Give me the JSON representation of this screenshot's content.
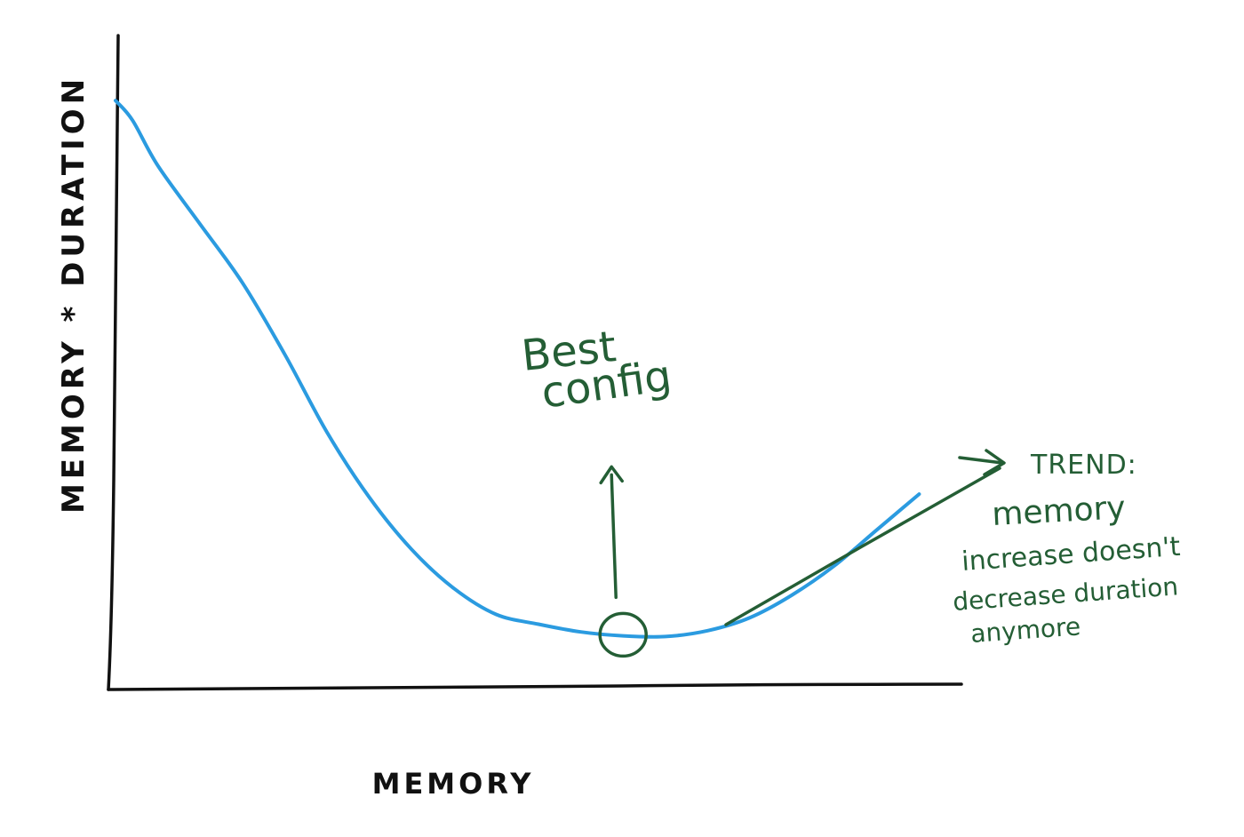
{
  "colors": {
    "curve": "#2b9be0",
    "annotation": "#245e35",
    "axis": "#111111"
  },
  "chart_data": {
    "type": "line",
    "title": "",
    "xlabel": "MEMORY",
    "ylabel": "MEMORY * DURATION",
    "x_ticks": "none",
    "y_ticks": "none",
    "grid": false,
    "style": "hand-drawn sketch",
    "series": [
      {
        "x": [
          0,
          2,
          5,
          10,
          15,
          20,
          25,
          30,
          35,
          40,
          45,
          50,
          55,
          60,
          65,
          70,
          75,
          80,
          85,
          90,
          95
        ],
        "values": [
          90,
          87,
          80,
          71,
          62,
          51,
          39,
          29,
          21,
          15,
          11,
          9.5,
          8.3,
          7.7,
          7.6,
          8.5,
          10.5,
          14,
          18.5,
          24,
          29.5
        ]
      }
    ],
    "xlim": [
      0,
      100
    ],
    "ylim": [
      0,
      100
    ],
    "annotations": {
      "best": {
        "lines": [
          "Best",
          "config"
        ],
        "x": 60,
        "y": 7.6
      },
      "trend": {
        "lines": [
          "TREND:",
          "memory",
          "increase doesn't",
          "decrease duration",
          "anymore"
        ]
      }
    }
  }
}
